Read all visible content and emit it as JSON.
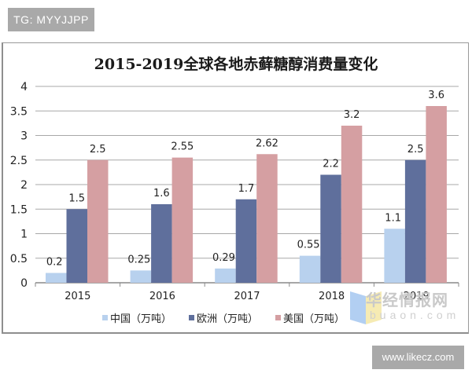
{
  "watermarks": {
    "top_tag": "TG: MYYJJPP",
    "bottom_tag": "www.likecz.com",
    "site_name": "华经情报网",
    "site_domain": "buaon.com"
  },
  "chart_data": {
    "type": "bar",
    "title": "2015-2019全球各地赤藓糖醇消费量变化",
    "xlabel": "",
    "ylabel": "",
    "categories": [
      "2015",
      "2016",
      "2017",
      "2018",
      "2019"
    ],
    "series": [
      {
        "name": "中国（万吨）",
        "color": "#b8d1ee",
        "values": [
          0.2,
          0.25,
          0.29,
          0.55,
          1.1
        ],
        "labels": [
          "0.2",
          "0.25",
          "0.29",
          "0.55",
          "1.1"
        ]
      },
      {
        "name": "欧洲（万吨）",
        "color": "#5f6f9c",
        "values": [
          1.5,
          1.6,
          1.7,
          2.2,
          2.5
        ],
        "labels": [
          "1.5",
          "1.6",
          "1.7",
          "2.2",
          "2.5"
        ]
      },
      {
        "name": "美国（万吨）",
        "color": "#d59fa2",
        "values": [
          2.5,
          2.55,
          2.62,
          3.2,
          3.6
        ],
        "labels": [
          "2.5",
          "2.55",
          "2.62",
          "3.2",
          "3.6"
        ]
      }
    ],
    "ylim": [
      0,
      4
    ],
    "yticks": [
      "0",
      "0.5",
      "1",
      "1.5",
      "2",
      "2.5",
      "3",
      "3.5",
      "4"
    ],
    "grid": true,
    "legend_position": "bottom"
  }
}
